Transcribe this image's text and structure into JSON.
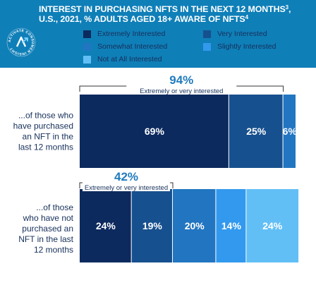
{
  "header": {
    "title_line1": "INTEREST IN PURCHASING NFTS IN THE NEXT 12 MONTHS",
    "title_line1_sup": "3",
    "title_line2": "U.S., 2021, % ADULTS AGED 18+ AWARE OF NFTS",
    "title_line2_sup": "4"
  },
  "badge": {
    "ring_text": "ACTIVATE CONSUMER INSIGHT"
  },
  "chart_data": {
    "type": "bar",
    "orientation": "horizontal",
    "stacked": true,
    "categories": [
      "...of those who have purchased an NFT in the last 12 months",
      "...of those who have not purchased an NFT in the last 12 months"
    ],
    "category_lines": [
      [
        "...of those who",
        "have purchased",
        "an NFT in the",
        "last 12 months"
      ],
      [
        "...of those",
        "who have not",
        "purchased an",
        "NFT in the last",
        "12 months"
      ]
    ],
    "series": [
      {
        "name": "Extremely Interested",
        "color": "#0d2a5e",
        "values": [
          69,
          24
        ]
      },
      {
        "name": "Very Interested",
        "color": "#17508e",
        "values": [
          25,
          19
        ]
      },
      {
        "name": "Somewhat Interested",
        "color": "#2275c1",
        "values": [
          6,
          20
        ]
      },
      {
        "name": "Slightly Interested",
        "color": "#3299ee",
        "values": [
          0,
          14
        ]
      },
      {
        "name": "Not at All Interested",
        "color": "#62bff5",
        "values": [
          0,
          24
        ]
      }
    ],
    "data_labels": [
      [
        "69%",
        "25%",
        "6%",
        "",
        ""
      ],
      [
        "24%",
        "19%",
        "20%",
        "14%",
        "24%"
      ]
    ],
    "annotations": [
      {
        "value": "94%",
        "text": "Extremely or very interested"
      },
      {
        "value": "42%",
        "text": "Extremely or very interested"
      }
    ],
    "legend_position": "top",
    "grid": false
  }
}
